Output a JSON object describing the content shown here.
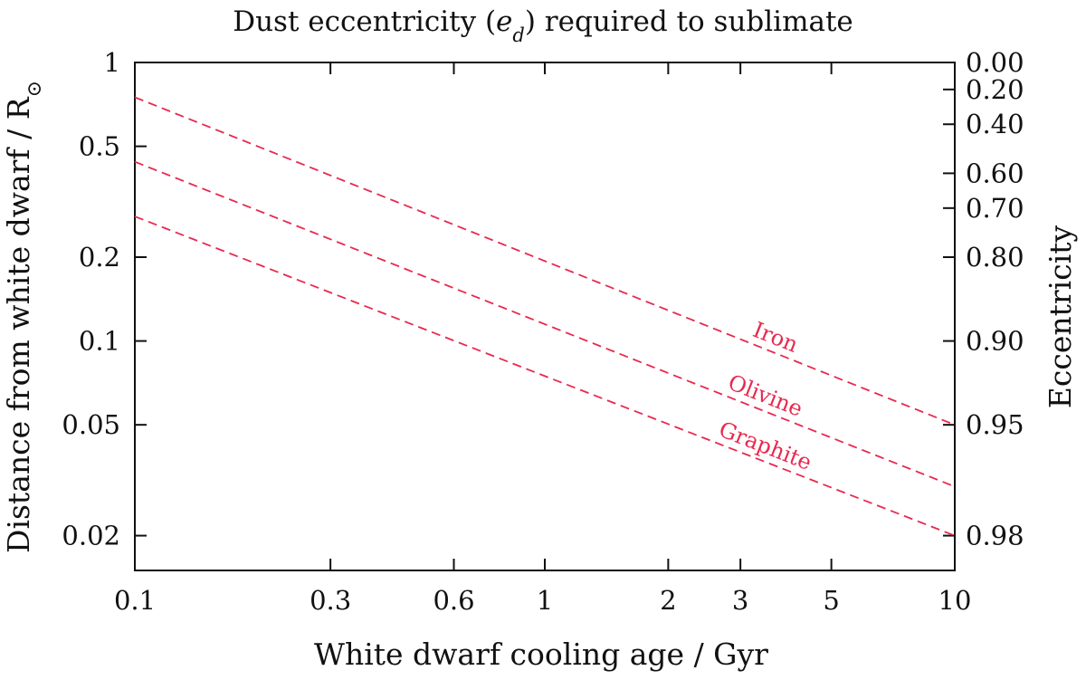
{
  "chart_data": {
    "type": "line",
    "title": "Dust eccentricity (",
    "title_var": "e",
    "title_sub": "d",
    "title_end": ") required to sublimate",
    "xlabel": "White dwarf cooling age / Gyr",
    "ylabel": "Distance from white dwarf / R",
    "ylabel_symbol": "⊙",
    "y2label": "Eccentricity",
    "xscale": "log",
    "yscale": "log",
    "xlim": [
      0.1,
      10
    ],
    "ylim": [
      0.015,
      1
    ],
    "xticks": [
      0.1,
      0.3,
      0.6,
      1,
      2,
      3,
      5,
      10
    ],
    "xtick_labels": [
      "0.1",
      "0.3",
      "0.6",
      "1",
      "2",
      "3",
      "5",
      "10"
    ],
    "yticks": [
      1,
      0.5,
      0.2,
      0.1,
      0.05,
      0.02
    ],
    "ytick_labels": [
      "1",
      "0.5",
      "0.2",
      "0.1",
      "0.05",
      "0.02"
    ],
    "y2ticks": [
      1,
      0.8,
      0.6,
      0.4,
      0.3,
      0.2,
      0.1,
      0.05,
      0.02
    ],
    "y2tick_labels": [
      "0.00",
      "0.20",
      "0.40",
      "0.60",
      "0.70",
      "0.80",
      "0.90",
      "0.95",
      "0.98"
    ],
    "grid": false,
    "line_style": "dashed",
    "color": "#e8294f",
    "series": [
      {
        "name": "Iron",
        "x": [
          0.1,
          10
        ],
        "y": [
          0.75,
          0.05
        ]
      },
      {
        "name": "Olivine",
        "x": [
          0.1,
          10
        ],
        "y": [
          0.44,
          0.03
        ]
      },
      {
        "name": "Graphite",
        "x": [
          0.1,
          10
        ],
        "y": [
          0.28,
          0.02
        ]
      }
    ],
    "series_label_at_x": [
      3.6,
      3.4,
      3.4
    ]
  }
}
